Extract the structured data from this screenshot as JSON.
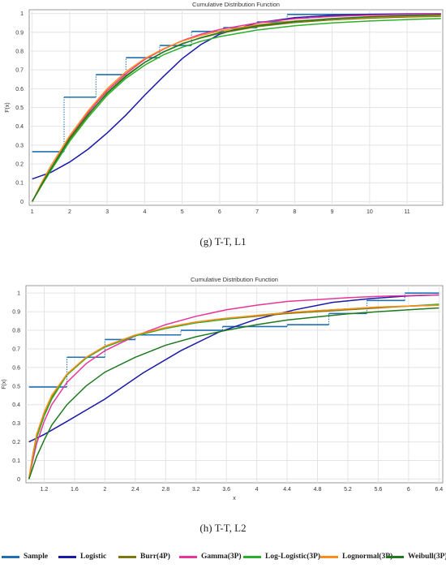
{
  "captions": {
    "g": "(g) T-T, L1",
    "h": "(h) T-T, L2"
  },
  "colors": {
    "Sample": "#1f6fb5",
    "Logistic": "#1a1aa8",
    "Burr(4P)": "#7a7a10",
    "Gamma(3P)": "#e8359a",
    "Log-Logistic(3P)": "#2cb02c",
    "Lognormal(3P)": "#ff8c1a",
    "Weibull(3P)": "#1f7a1f"
  },
  "legend": [
    "Sample",
    "Logistic",
    "Burr(4P)",
    "Gamma(3P)",
    "Log-Logistic(3P)",
    "Lognormal(3P)",
    "Weibull(3P)"
  ],
  "chart_data": [
    {
      "type": "line",
      "title": "Cumulative Distribution Function",
      "xlabel": "x",
      "ylabel": "F(x)",
      "xlim": [
        0.92,
        11.95
      ],
      "ylim": [
        -0.02,
        1.02
      ],
      "xticks": [
        1,
        2,
        3,
        4,
        5,
        6,
        7,
        8,
        9,
        10,
        11
      ],
      "xtick_labels": [
        "1",
        "2",
        "3",
        "4",
        "5",
        "6",
        "7",
        "8",
        "9",
        "10",
        "11"
      ],
      "yticks": [
        0,
        0.1,
        0.2,
        0.3,
        0.4,
        0.5,
        0.6,
        0.7,
        0.8,
        0.9,
        1
      ],
      "ytick_labels": [
        "0",
        "0.1",
        "0.2",
        "0.3",
        "0.4",
        "0.5",
        "0.6",
        "0.7",
        "0.8",
        "0.9",
        "1"
      ],
      "grid": true,
      "sample_steps": {
        "x": [
          1.0,
          1.85,
          1.85,
          2.7,
          2.7,
          3.5,
          3.5,
          4.4,
          4.4,
          5.25,
          5.25,
          6.1,
          6.1,
          7.0,
          7.0,
          7.8,
          7.8,
          11.9
        ],
        "y": [
          0.265,
          0.265,
          0.555,
          0.555,
          0.675,
          0.675,
          0.765,
          0.765,
          0.83,
          0.83,
          0.905,
          0.905,
          0.925,
          0.925,
          0.955,
          0.955,
          0.995,
          0.995
        ]
      },
      "series": [
        {
          "name": "Logistic",
          "x": [
            1,
            1.5,
            2,
            2.5,
            3,
            3.5,
            4,
            4.5,
            5,
            5.5,
            6,
            7,
            8,
            9,
            10,
            11,
            11.9
          ],
          "y": [
            0.12,
            0.155,
            0.21,
            0.28,
            0.365,
            0.46,
            0.565,
            0.665,
            0.76,
            0.835,
            0.89,
            0.95,
            0.978,
            0.99,
            0.996,
            0.998,
            0.999
          ]
        },
        {
          "name": "Burr(4P)",
          "x": [
            1,
            1.25,
            1.5,
            2,
            2.5,
            3,
            3.5,
            4,
            4.5,
            5,
            5.5,
            6,
            7,
            8,
            9,
            10,
            11,
            11.9
          ],
          "y": [
            0,
            0.09,
            0.17,
            0.33,
            0.46,
            0.58,
            0.67,
            0.74,
            0.795,
            0.84,
            0.87,
            0.895,
            0.93,
            0.952,
            0.966,
            0.975,
            0.981,
            0.985
          ]
        },
        {
          "name": "Gamma(3P)",
          "x": [
            1,
            1.25,
            1.5,
            2,
            2.5,
            3,
            3.5,
            4,
            4.5,
            5,
            5.5,
            6,
            7,
            8,
            9,
            10,
            11,
            11.9
          ],
          "y": [
            0,
            0.09,
            0.175,
            0.34,
            0.475,
            0.59,
            0.68,
            0.755,
            0.81,
            0.855,
            0.89,
            0.915,
            0.95,
            0.972,
            0.984,
            0.991,
            0.995,
            0.997
          ]
        },
        {
          "name": "Log-Logistic(3P)",
          "x": [
            1,
            1.25,
            1.5,
            2,
            2.5,
            3,
            3.5,
            4,
            4.5,
            5,
            5.5,
            6,
            7,
            8,
            9,
            10,
            11,
            11.9
          ],
          "y": [
            0,
            0.085,
            0.165,
            0.32,
            0.45,
            0.565,
            0.655,
            0.725,
            0.78,
            0.82,
            0.852,
            0.877,
            0.912,
            0.935,
            0.95,
            0.96,
            0.968,
            0.973
          ]
        },
        {
          "name": "Lognormal(3P)",
          "x": [
            1,
            1.25,
            1.5,
            2,
            2.5,
            3,
            3.5,
            4,
            4.5,
            5,
            5.5,
            6,
            7,
            8,
            9,
            10,
            11,
            11.9
          ],
          "y": [
            0,
            0.1,
            0.19,
            0.35,
            0.485,
            0.6,
            0.69,
            0.76,
            0.812,
            0.853,
            0.883,
            0.907,
            0.94,
            0.96,
            0.972,
            0.98,
            0.986,
            0.989
          ]
        },
        {
          "name": "Weibull(3P)",
          "x": [
            1,
            1.25,
            1.5,
            2,
            2.5,
            3,
            3.5,
            4,
            4.5,
            5,
            5.5,
            6,
            7,
            8,
            9,
            10,
            11,
            11.9
          ],
          "y": [
            0,
            0.09,
            0.175,
            0.335,
            0.465,
            0.575,
            0.665,
            0.74,
            0.795,
            0.838,
            0.872,
            0.898,
            0.935,
            0.958,
            0.973,
            0.983,
            0.989,
            0.993
          ]
        }
      ]
    },
    {
      "type": "line",
      "title": "Cumulative Distribution Function",
      "xlabel": "x",
      "ylabel": "F(x)",
      "xlim": [
        0.96,
        6.45
      ],
      "ylim": [
        -0.02,
        1.04
      ],
      "xticks": [
        1.2,
        1.6,
        2,
        2.4,
        2.8,
        3.2,
        3.6,
        4,
        4.4,
        4.8,
        5.2,
        5.6,
        6,
        6.4
      ],
      "xtick_labels": [
        "1.2",
        "1.6",
        "2",
        "2.4",
        "2.8",
        "3.2",
        "3.6",
        "4",
        "4.4",
        "4.8",
        "5.2",
        "5.6",
        "6",
        "6.4"
      ],
      "yticks": [
        0,
        0.1,
        0.2,
        0.3,
        0.4,
        0.5,
        0.6,
        0.7,
        0.8,
        0.9,
        1
      ],
      "ytick_labels": [
        "0",
        "0.1",
        "0.2",
        "0.3",
        "0.4",
        "0.5",
        "0.6",
        "0.7",
        "0.8",
        "0.9",
        "1"
      ],
      "grid": true,
      "sample_steps": {
        "x": [
          1.0,
          1.5,
          1.5,
          2.0,
          2.0,
          2.4,
          2.4,
          3.0,
          3.0,
          3.55,
          3.55,
          4.4,
          4.4,
          4.95,
          4.95,
          5.45,
          5.45,
          5.95,
          5.95,
          6.4
        ],
        "y": [
          0.495,
          0.495,
          0.655,
          0.655,
          0.75,
          0.75,
          0.775,
          0.775,
          0.8,
          0.8,
          0.82,
          0.82,
          0.83,
          0.83,
          0.89,
          0.89,
          0.96,
          0.96,
          1.0,
          1.0
        ]
      },
      "series": [
        {
          "name": "Logistic",
          "x": [
            1,
            1.2,
            1.5,
            2,
            2.5,
            3,
            3.5,
            4,
            4.5,
            5,
            5.5,
            6,
            6.4
          ],
          "y": [
            0.2,
            0.24,
            0.31,
            0.43,
            0.57,
            0.69,
            0.79,
            0.86,
            0.91,
            0.95,
            0.97,
            0.985,
            0.99
          ]
        },
        {
          "name": "Burr(4P)",
          "x": [
            1,
            1.05,
            1.1,
            1.2,
            1.3,
            1.5,
            1.75,
            2,
            2.4,
            2.8,
            3.2,
            3.6,
            4,
            4.4,
            4.8,
            5.2,
            5.6,
            6,
            6.4
          ],
          "y": [
            0,
            0.13,
            0.23,
            0.35,
            0.44,
            0.56,
            0.65,
            0.71,
            0.77,
            0.81,
            0.84,
            0.86,
            0.875,
            0.89,
            0.9,
            0.91,
            0.92,
            0.93,
            0.935
          ]
        },
        {
          "name": "Gamma(3P)",
          "x": [
            1,
            1.05,
            1.1,
            1.2,
            1.3,
            1.5,
            1.75,
            2,
            2.4,
            2.8,
            3.2,
            3.6,
            4,
            4.4,
            4.8,
            5.2,
            5.6,
            6,
            6.4
          ],
          "y": [
            0,
            0.1,
            0.19,
            0.31,
            0.4,
            0.52,
            0.62,
            0.69,
            0.77,
            0.83,
            0.875,
            0.91,
            0.935,
            0.955,
            0.965,
            0.975,
            0.982,
            0.987,
            0.99
          ]
        },
        {
          "name": "Log-Logistic(3P)",
          "x": [
            1,
            1.05,
            1.1,
            1.2,
            1.3,
            1.5,
            1.75,
            2,
            2.4,
            2.8,
            3.2,
            3.6,
            4,
            4.4,
            4.8,
            5.2,
            5.6,
            6,
            6.4
          ],
          "y": [
            0,
            0.12,
            0.22,
            0.34,
            0.43,
            0.56,
            0.65,
            0.71,
            0.77,
            0.81,
            0.84,
            0.86,
            0.88,
            0.895,
            0.905,
            0.915,
            0.925,
            0.93,
            0.94
          ]
        },
        {
          "name": "Lognormal(3P)",
          "x": [
            1,
            1.05,
            1.1,
            1.2,
            1.3,
            1.5,
            1.75,
            2,
            2.4,
            2.8,
            3.2,
            3.6,
            4,
            4.4,
            4.8,
            5.2,
            5.6,
            6,
            6.4
          ],
          "y": [
            0,
            0.13,
            0.24,
            0.36,
            0.45,
            0.565,
            0.655,
            0.715,
            0.775,
            0.815,
            0.845,
            0.865,
            0.88,
            0.895,
            0.905,
            0.915,
            0.925,
            0.93,
            0.935
          ]
        },
        {
          "name": "Weibull(3P)",
          "x": [
            1,
            1.05,
            1.1,
            1.2,
            1.3,
            1.5,
            1.75,
            2,
            2.4,
            2.8,
            3.2,
            3.6,
            4,
            4.4,
            4.8,
            5.2,
            5.6,
            6,
            6.4
          ],
          "y": [
            0,
            0.06,
            0.12,
            0.21,
            0.29,
            0.4,
            0.5,
            0.575,
            0.655,
            0.72,
            0.765,
            0.8,
            0.83,
            0.855,
            0.872,
            0.888,
            0.9,
            0.91,
            0.92
          ]
        }
      ]
    }
  ]
}
